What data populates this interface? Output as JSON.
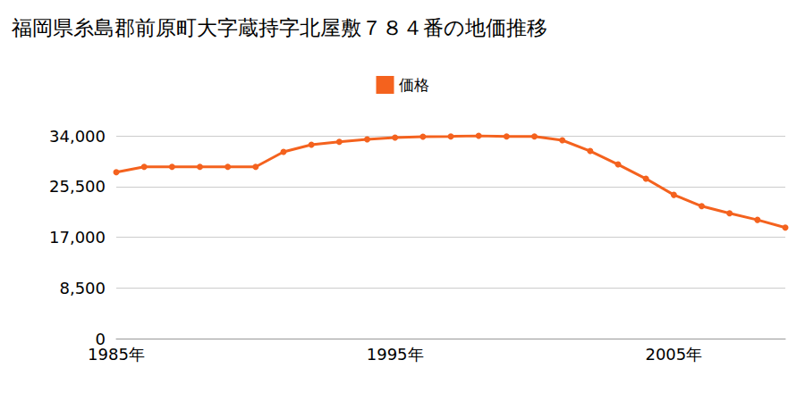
{
  "chart_data": {
    "type": "line",
    "title": "福岡県糸島郡前原町大字蔵持字北屋敷７８４番の地価推移",
    "categories": [
      "1985年",
      null,
      null,
      null,
      null,
      null,
      null,
      null,
      null,
      null,
      "1995年",
      null,
      null,
      null,
      null,
      null,
      null,
      null,
      null,
      null,
      "2005年",
      null,
      null,
      null,
      null
    ],
    "series": [
      {
        "name": "価格",
        "color": "#f4621e",
        "marker": "circle",
        "line_style": "solid",
        "values": [
          27900,
          28800,
          28800,
          28800,
          28800,
          28800,
          31300,
          32500,
          33000,
          33400,
          33700,
          33850,
          33900,
          34000,
          33900,
          33900,
          33250,
          31450,
          29200,
          26800,
          24100,
          22200,
          21000,
          19900,
          18600
        ]
      }
    ],
    "ylim": [
      0,
      34000
    ],
    "yticks": [
      0,
      {
        "value": 8500,
        "label": "8,500"
      },
      {
        "value": 17000,
        "label": "17,000"
      },
      {
        "value": 25500,
        "label": "25,500"
      },
      {
        "value": 34000,
        "label": "34,000"
      }
    ],
    "grid": true,
    "legend": "top"
  }
}
